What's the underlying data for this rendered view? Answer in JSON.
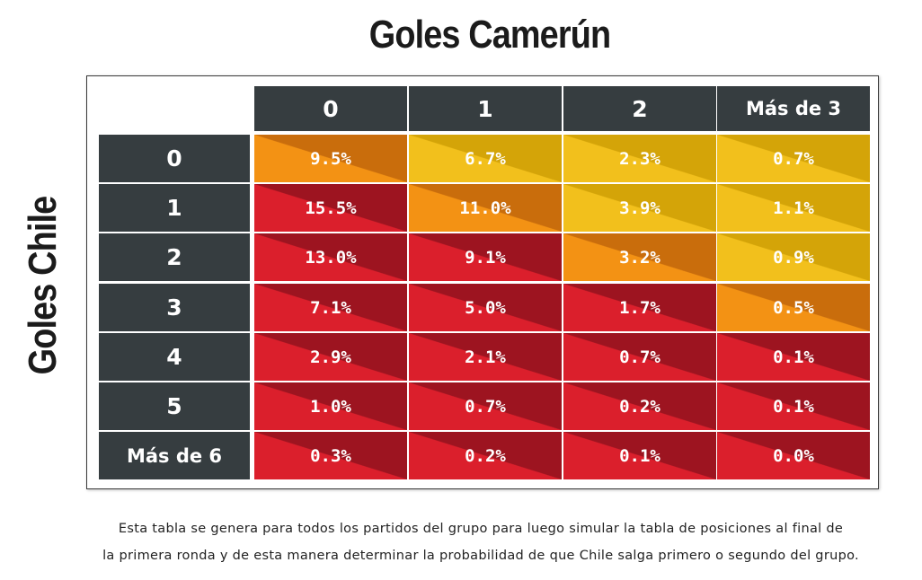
{
  "title": "Goles Camerún",
  "row_axis_label": "Goles Chile",
  "colors": {
    "header_bg": "#363d40",
    "orange": [
      "#f39214",
      "#c96d0c"
    ],
    "yellow": [
      "#f2c01c",
      "#d4a408"
    ],
    "red": [
      "#db1f2c",
      "#9d1420"
    ]
  },
  "chart_data": {
    "type": "heatmap",
    "title": "Goles Camerún",
    "xlabel": "Goles Camerún",
    "ylabel": "Goles Chile",
    "columns": [
      "0",
      "1",
      "2",
      "Más de 3"
    ],
    "rows": [
      "0",
      "1",
      "2",
      "3",
      "4",
      "5",
      "Más de 6"
    ],
    "values": [
      [
        "9.5%",
        "6.7%",
        "2.3%",
        "0.7%"
      ],
      [
        "15.5%",
        "11.0%",
        "3.9%",
        "1.1%"
      ],
      [
        "13.0%",
        "9.1%",
        "3.2%",
        "0.9%"
      ],
      [
        "7.1%",
        "5.0%",
        "1.7%",
        "0.5%"
      ],
      [
        "2.9%",
        "2.1%",
        "0.7%",
        "0.1%"
      ],
      [
        "1.0%",
        "0.7%",
        "0.2%",
        "0.1%"
      ],
      [
        "0.3%",
        "0.2%",
        "0.1%",
        "0.0%"
      ]
    ],
    "cell_colors": [
      [
        "orange",
        "yellow",
        "yellow",
        "yellow"
      ],
      [
        "red",
        "orange",
        "yellow",
        "yellow"
      ],
      [
        "red",
        "red",
        "orange",
        "yellow"
      ],
      [
        "red",
        "red",
        "red",
        "orange"
      ],
      [
        "red",
        "red",
        "red",
        "red"
      ],
      [
        "red",
        "red",
        "red",
        "red"
      ],
      [
        "red",
        "red",
        "red",
        "red"
      ]
    ]
  },
  "footnote": {
    "line1": "Esta tabla se genera para todos los partidos del grupo para luego simular la tabla de posiciones al final de",
    "line2": "la primera ronda y de esta manera determinar la probabilidad de que Chile salga primero o segundo del grupo."
  }
}
